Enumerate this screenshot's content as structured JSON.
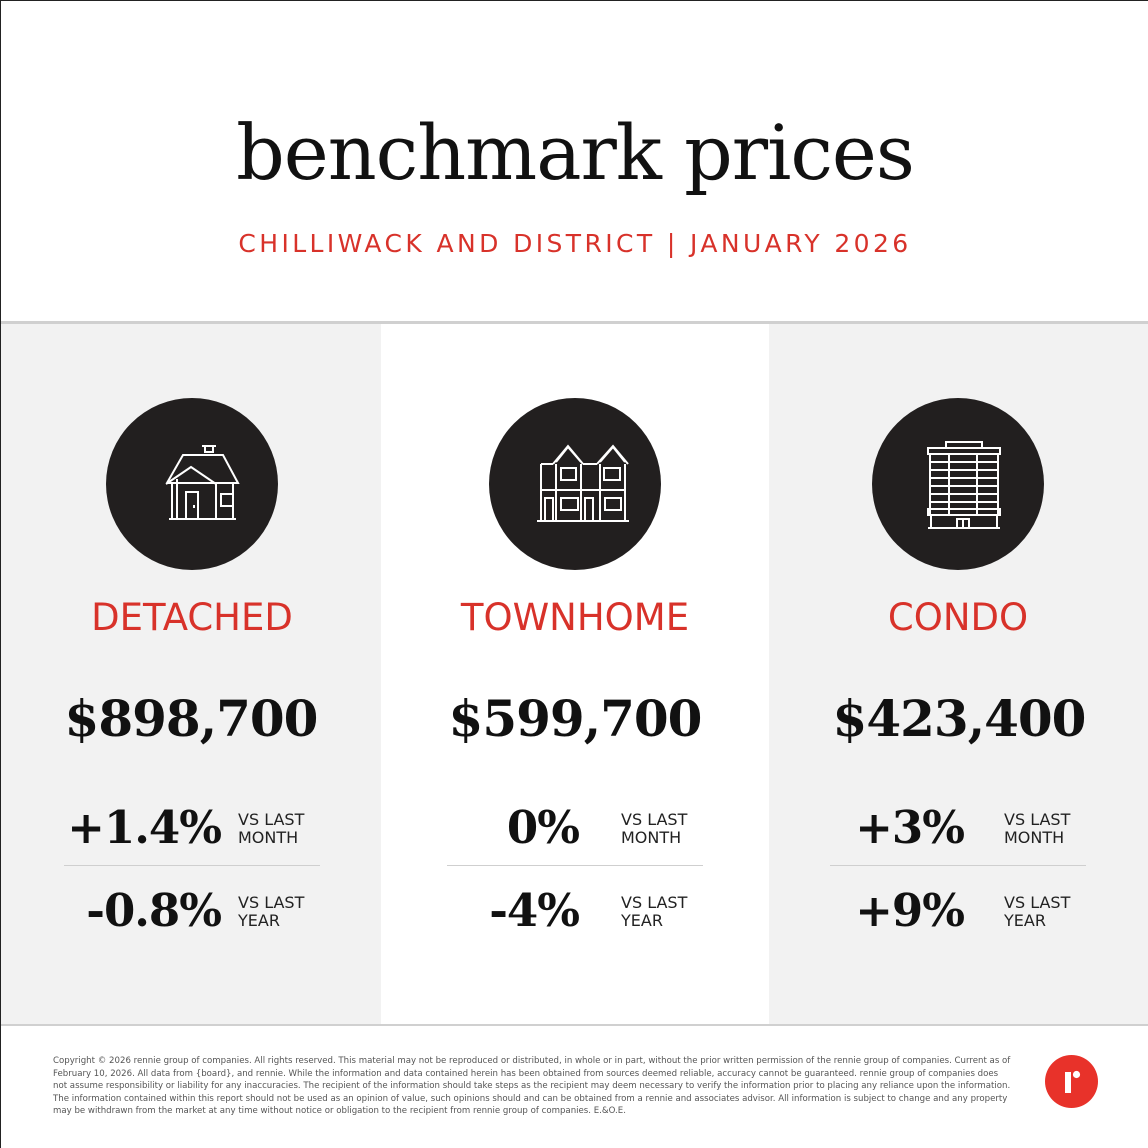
{
  "header": {
    "title": "benchmark prices",
    "subtitle": "CHILLIWACK AND DISTRICT | JANUARY 2026"
  },
  "colors": {
    "accent": "#d8322a",
    "icon_circle": "#221f1f",
    "panel_gray": "#f2f2f2",
    "logo": "#e8322a"
  },
  "categories": [
    {
      "icon": "house-icon",
      "label": "DETACHED",
      "price": "$898,700",
      "month_change": "+1.4%",
      "month_caption": "VS LAST\nMONTH",
      "year_change": "-0.8%",
      "year_caption": "VS LAST\nYEAR"
    },
    {
      "icon": "townhouse-icon",
      "label": "TOWNHOME",
      "price": "$599,700",
      "month_change": "0%",
      "month_caption": "VS LAST\nMONTH",
      "year_change": "-4%",
      "year_caption": "VS LAST\nYEAR"
    },
    {
      "icon": "condo-building-icon",
      "label": "CONDO",
      "price": "$423,400",
      "month_change": "+3%",
      "month_caption": "VS LAST\nMONTH",
      "year_change": "+9%",
      "year_caption": "VS LAST\nYEAR"
    }
  ],
  "footer": {
    "disclaimer": "Copyright © 2026 rennie group of companies. All rights reserved. This material may not be reproduced or distributed, in whole or in part, without the prior written permission of the rennie group of companies. Current as of February 10, 2026. All data from {board}, and rennie. While the information and data contained herein has been obtained from sources deemed reliable, accuracy cannot be guaranteed. rennie group of companies does not assume responsibility or liability for any inaccuracies. The recipient of the information should take steps as the recipient may deem necessary to verify the information prior to placing any reliance upon the information. The information contained within this report should not be used as an opinion of value, such opinions should and can be obtained from a rennie and associates advisor. All information is subject to change and any property may be withdrawn from the market at any time without notice or obligation to the recipient from rennie group of companies. E.&O.E.",
    "logo_icon": "rennie-logo-icon"
  }
}
